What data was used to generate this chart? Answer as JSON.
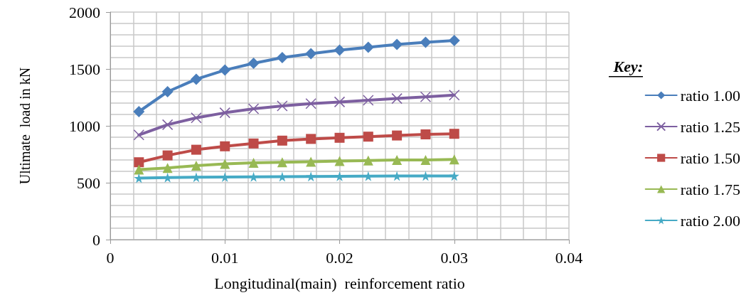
{
  "chart_data": {
    "type": "line",
    "xlabel": "Longitudinal(main)  reinforcement ratio",
    "ylabel": "Ultimate  load in kN",
    "legend_title": "Key:",
    "x": [
      0.0025,
      0.005,
      0.0075,
      0.01,
      0.0125,
      0.015,
      0.0175,
      0.02,
      0.0225,
      0.025,
      0.0275,
      0.03
    ],
    "series": [
      {
        "name": "ratio 1.00",
        "color": "#4a7ebb",
        "marker": "diamond",
        "values": [
          1125,
          1300,
          1410,
          1490,
          1550,
          1600,
          1635,
          1665,
          1690,
          1715,
          1735,
          1750
        ]
      },
      {
        "name": "ratio 1.25",
        "color": "#7d5fa0",
        "marker": "cross",
        "values": [
          920,
          1010,
          1070,
          1115,
          1150,
          1175,
          1195,
          1210,
          1225,
          1240,
          1255,
          1270
        ]
      },
      {
        "name": "ratio 1.50",
        "color": "#be4b48",
        "marker": "square",
        "values": [
          680,
          740,
          790,
          820,
          845,
          870,
          885,
          895,
          905,
          915,
          925,
          930
        ]
      },
      {
        "name": "ratio 1.75",
        "color": "#98b954",
        "marker": "triangle",
        "values": [
          615,
          630,
          650,
          665,
          675,
          680,
          685,
          690,
          695,
          700,
          700,
          705
        ]
      },
      {
        "name": "ratio 2.00",
        "color": "#46aac5",
        "marker": "star",
        "values": [
          540,
          545,
          548,
          550,
          552,
          553,
          555,
          557,
          558,
          559,
          560,
          560
        ]
      }
    ],
    "xlim": [
      0,
      0.04
    ],
    "xticks": [
      0,
      0.01,
      0.02,
      0.03,
      0.04
    ],
    "ylim": [
      0,
      2000
    ],
    "yticks": [
      0,
      500,
      1000,
      1500,
      2000
    ],
    "grid": true,
    "legend": "right",
    "line_style": "solid"
  }
}
